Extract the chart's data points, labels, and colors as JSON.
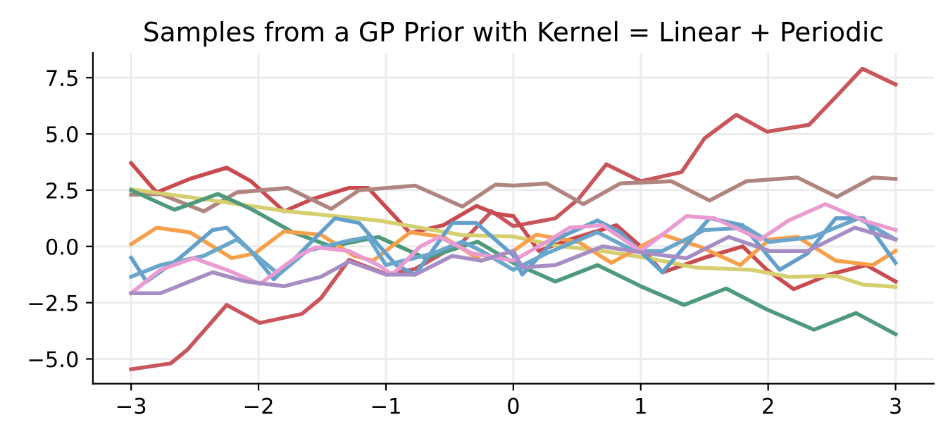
{
  "chart_data": {
    "type": "line",
    "title": "Samples from a GP Prior with Kernel = Linear + Periodic",
    "xlim": [
      -3.3,
      3.3
    ],
    "ylim": [
      -6.1,
      8.6
    ],
    "xticks": [
      {
        "value": -3,
        "label": "−3"
      },
      {
        "value": -2,
        "label": "−2"
      },
      {
        "value": -1,
        "label": "−1"
      },
      0,
      1,
      2,
      3
    ],
    "yticks": [
      {
        "value": -5,
        "label": "−5.0"
      },
      {
        "value": -2.5,
        "label": "−2.5"
      },
      {
        "value": 0,
        "label": "0.0"
      },
      {
        "value": 2.5,
        "label": "2.5"
      },
      {
        "value": 5,
        "label": "5.0"
      },
      {
        "value": 7.5,
        "label": "7.5"
      }
    ],
    "grid": true,
    "legend": false,
    "marker": "none",
    "line_style": "solid",
    "series": [
      {
        "color": "#c9565c",
        "x": [
          -3,
          -2.69,
          -2.56,
          -2.25,
          -1.99,
          -1.66,
          -1.51,
          -1.29,
          -0.99,
          -0.77,
          -0.4,
          -0.17,
          0,
          0.33,
          0.51,
          0.73,
          1.0,
          1.32,
          1.5,
          1.75,
          1.99,
          2.32,
          2.54,
          2.74,
          3.0
        ],
        "values": [
          -5.46,
          -5.2,
          -4.6,
          -2.6,
          -3.4,
          -3.0,
          -2.3,
          -0.6,
          -1.25,
          -1.0,
          0.2,
          1.56,
          0.9,
          1.25,
          2.1,
          3.65,
          2.9,
          3.3,
          4.8,
          5.85,
          5.1,
          5.4,
          6.7,
          7.9,
          7.2
        ]
      },
      {
        "color": "#c94a4f",
        "x": [
          -3,
          -2.8,
          -2.54,
          -2.25,
          -2.06,
          -1.8,
          -1.58,
          -1.29,
          -1.14,
          -0.81,
          -0.55,
          -0.29,
          -0.14,
          0,
          0.2,
          0.44,
          0.81,
          1.0,
          1.17,
          1.5,
          1.8,
          1.99,
          2.2,
          2.48,
          2.77,
          3.0
        ],
        "values": [
          3.7,
          2.4,
          3.0,
          3.5,
          2.9,
          1.56,
          2.1,
          2.6,
          2.6,
          0.6,
          0.94,
          1.8,
          1.46,
          1.35,
          -0.2,
          0.3,
          0.94,
          0.0,
          -1.15,
          -0.5,
          0.0,
          -1.04,
          -1.9,
          -1.25,
          -0.83,
          -1.56
        ]
      },
      {
        "color": "#b08580",
        "x": [
          -3,
          -2.77,
          -2.43,
          -2.17,
          -1.77,
          -1.43,
          -1.21,
          -0.77,
          -0.4,
          -0.14,
          0,
          0.26,
          0.55,
          0.84,
          1.24,
          1.54,
          1.83,
          2.23,
          2.54,
          2.82,
          3.0
        ],
        "values": [
          2.3,
          2.33,
          1.56,
          2.4,
          2.6,
          1.67,
          2.5,
          2.7,
          1.77,
          2.75,
          2.7,
          2.8,
          1.88,
          2.8,
          2.9,
          2.04,
          2.9,
          3.06,
          2.2,
          3.06,
          3.0
        ]
      },
      {
        "color": "#d6cf70",
        "x": [
          -3,
          -2.43,
          -1.77,
          -1.06,
          -0.4,
          0,
          0.33,
          0.7,
          1.06,
          1.43,
          1.87,
          2.16,
          2.53,
          2.75,
          3.0
        ],
        "values": [
          2.54,
          2.1,
          1.56,
          1.15,
          0.5,
          0.44,
          0.04,
          -0.2,
          -0.52,
          -0.94,
          -1.04,
          -1.35,
          -1.31,
          -1.7,
          -1.8
        ]
      },
      {
        "color": "#4f9a7c",
        "x": [
          -3,
          -2.66,
          -2.32,
          -2.06,
          -1.73,
          -1.43,
          -1.06,
          -0.69,
          -0.28,
          0,
          0.33,
          0.66,
          1.0,
          1.34,
          1.67,
          1.99,
          2.36,
          2.69,
          3.0
        ],
        "values": [
          2.5,
          1.63,
          2.33,
          1.67,
          0.63,
          0.0,
          0.42,
          -0.52,
          0.21,
          -0.73,
          -1.56,
          -0.83,
          -1.77,
          -2.6,
          -1.87,
          -2.8,
          -3.7,
          -2.96,
          -3.9
        ]
      },
      {
        "color": "#f7a04c",
        "x": [
          -3,
          -2.8,
          -2.54,
          -2.21,
          -2.03,
          -1.8,
          -1.51,
          -1.25,
          -1.1,
          -0.81,
          -0.55,
          -0.25,
          0,
          0.18,
          0.51,
          0.77,
          1.17,
          1.46,
          1.78,
          2.01,
          2.23,
          2.53,
          2.82,
          3.0
        ],
        "values": [
          0.1,
          0.83,
          0.63,
          -0.52,
          -0.31,
          0.67,
          0.52,
          -0.42,
          -0.63,
          0.63,
          0.42,
          -0.63,
          -0.2,
          0.52,
          0.2,
          -0.73,
          0.52,
          0.0,
          -0.83,
          0.31,
          0.42,
          -0.63,
          -0.83,
          -0.2
        ]
      },
      {
        "color": "#62a0cb",
        "x": [
          -3,
          -2.88,
          -2.62,
          -2.36,
          -2.25,
          -2.06,
          -1.88,
          -1.4,
          -1.21,
          -0.92,
          -0.77,
          -0.48,
          -0.29,
          0,
          0.07,
          0.33,
          0.66,
          0.84,
          1.17,
          1.54,
          1.8,
          2.09,
          2.31,
          2.53,
          2.75,
          3.0
        ],
        "values": [
          -0.5,
          -1.56,
          -0.52,
          0.73,
          0.83,
          -0.2,
          -1.46,
          1.25,
          1.04,
          -0.83,
          -1.25,
          1.04,
          1.04,
          -0.4,
          -1.25,
          0.31,
          1.15,
          0.63,
          -1.15,
          1.25,
          0.94,
          -1.04,
          -0.31,
          1.25,
          1.25,
          -0.73
        ]
      },
      {
        "color": "#6aa5cc",
        "x": [
          -3,
          -2.77,
          -2.43,
          -2.17,
          -1.84,
          -1.62,
          -1.33,
          -1.14,
          -1.0,
          -0.63,
          -0.4,
          -0.25,
          0,
          0.26,
          0.66,
          0.95,
          1.17,
          1.5,
          1.83,
          2.01,
          2.35,
          2.71,
          3.0
        ],
        "values": [
          -1.35,
          -0.83,
          -0.42,
          0.31,
          -1.25,
          -0.2,
          0.21,
          0.42,
          -0.83,
          -0.31,
          0.21,
          -0.2,
          -1.04,
          -0.31,
          0.63,
          -0.2,
          -0.2,
          0.73,
          0.83,
          0.2,
          0.42,
          1.25,
          0.31
        ]
      },
      {
        "color": "#e99bd2",
        "x": [
          -3,
          -2.77,
          -2.51,
          -2.25,
          -1.99,
          -1.69,
          -1.55,
          -1.29,
          -1.06,
          -0.95,
          -0.73,
          -0.58,
          -0.32,
          0,
          0.26,
          0.44,
          0.7,
          1.0,
          1.36,
          1.58,
          1.94,
          2.16,
          2.45,
          2.75,
          3.0
        ],
        "values": [
          -2.08,
          -1.04,
          -0.52,
          -1.04,
          -1.67,
          -0.42,
          -0.04,
          -0.2,
          -0.83,
          -1.25,
          0.0,
          0.42,
          -0.31,
          -0.63,
          0.2,
          0.83,
          0.94,
          -0.2,
          1.35,
          1.25,
          0.31,
          1.15,
          1.88,
          1.15,
          0.73
        ]
      },
      {
        "color": "#a68dc4",
        "x": [
          -3,
          -2.77,
          -2.36,
          -2.1,
          -1.8,
          -1.51,
          -1.29,
          -1.0,
          -0.77,
          -0.48,
          -0.25,
          0,
          0.07,
          0.33,
          0.7,
          1.06,
          1.36,
          1.69,
          2.01,
          2.31,
          2.68,
          3.0
        ],
        "values": [
          -2.08,
          -2.08,
          -1.15,
          -1.56,
          -1.77,
          -1.35,
          -0.67,
          -1.25,
          -1.25,
          -0.42,
          -0.63,
          -0.2,
          -0.94,
          -0.83,
          0.0,
          -0.31,
          -0.52,
          0.42,
          -0.2,
          -0.2,
          0.83,
          0.31
        ]
      }
    ]
  }
}
